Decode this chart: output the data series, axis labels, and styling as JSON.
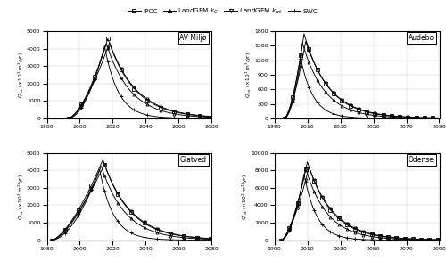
{
  "legend_labels_fmt": [
    "IPCC",
    "LandGEM $k_C$",
    "LandGEM $k_{wt}$",
    "SWC"
  ],
  "legend_markers": [
    "s",
    "^",
    "v",
    "+"
  ],
  "subplots": [
    {
      "title": "AV Miljø",
      "xlim": [
        1980,
        2080
      ],
      "xticks": [
        1980,
        2000,
        2020,
        2040,
        2060,
        2080
      ],
      "ylim": [
        0,
        5000
      ],
      "yticks": [
        0,
        1000,
        2000,
        3000,
        4000,
        5000
      ],
      "start_year": 1993,
      "series": [
        {
          "peak_year": 2017,
          "peak_val": 4580,
          "rise": 1.6,
          "fall": 0.062
        },
        {
          "peak_year": 2016,
          "peak_val": 4300,
          "rise": 1.7,
          "fall": 0.068
        },
        {
          "peak_year": 2018,
          "peak_val": 4350,
          "rise": 1.55,
          "fall": 0.06
        },
        {
          "peak_year": 2015,
          "peak_val": 4150,
          "rise": 1.9,
          "fall": 0.12
        }
      ]
    },
    {
      "title": "Audebo",
      "xlim": [
        1990,
        2090
      ],
      "xticks": [
        1990,
        2010,
        2030,
        2050,
        2070,
        2090
      ],
      "ylim": [
        0,
        1800
      ],
      "yticks": [
        0,
        300,
        600,
        900,
        1200,
        1500,
        1800
      ],
      "start_year": 1996,
      "series": [
        {
          "peak_year": 2008,
          "peak_val": 1750,
          "rise": 1.6,
          "fall": 0.068
        },
        {
          "peak_year": 2007,
          "peak_val": 1560,
          "rise": 1.7,
          "fall": 0.075
        },
        {
          "peak_year": 2009,
          "peak_val": 1590,
          "rise": 1.55,
          "fall": 0.065
        },
        {
          "peak_year": 2006,
          "peak_val": 1230,
          "rise": 1.9,
          "fall": 0.13
        }
      ]
    },
    {
      "title": "Glatved",
      "xlim": [
        1980,
        2080
      ],
      "xticks": [
        1980,
        2000,
        2020,
        2040,
        2060,
        2080
      ],
      "ylim": [
        0,
        5000
      ],
      "yticks": [
        0,
        1000,
        2000,
        3000,
        4000,
        5000
      ],
      "start_year": 1983,
      "series": [
        {
          "peak_year": 2014,
          "peak_val": 4620,
          "rise": 1.5,
          "fall": 0.062
        },
        {
          "peak_year": 2013,
          "peak_val": 4250,
          "rise": 1.6,
          "fall": 0.068
        },
        {
          "peak_year": 2015,
          "peak_val": 4350,
          "rise": 1.45,
          "fall": 0.06
        },
        {
          "peak_year": 2012,
          "peak_val": 4050,
          "rise": 1.8,
          "fall": 0.12
        }
      ]
    },
    {
      "title": "Odense",
      "xlim": [
        1990,
        2090
      ],
      "xticks": [
        1990,
        2010,
        2030,
        2050,
        2070,
        2090
      ],
      "ylim": [
        0,
        10000
      ],
      "yticks": [
        0,
        2000,
        4000,
        6000,
        8000,
        10000
      ],
      "start_year": 1994,
      "series": [
        {
          "peak_year": 2010,
          "peak_val": 9000,
          "rise": 1.6,
          "fall": 0.068
        },
        {
          "peak_year": 2009,
          "peak_val": 8200,
          "rise": 1.7,
          "fall": 0.075
        },
        {
          "peak_year": 2011,
          "peak_val": 8400,
          "rise": 1.55,
          "fall": 0.065
        },
        {
          "peak_year": 2008,
          "peak_val": 7600,
          "rise": 1.9,
          "fall": 0.13
        }
      ]
    }
  ]
}
